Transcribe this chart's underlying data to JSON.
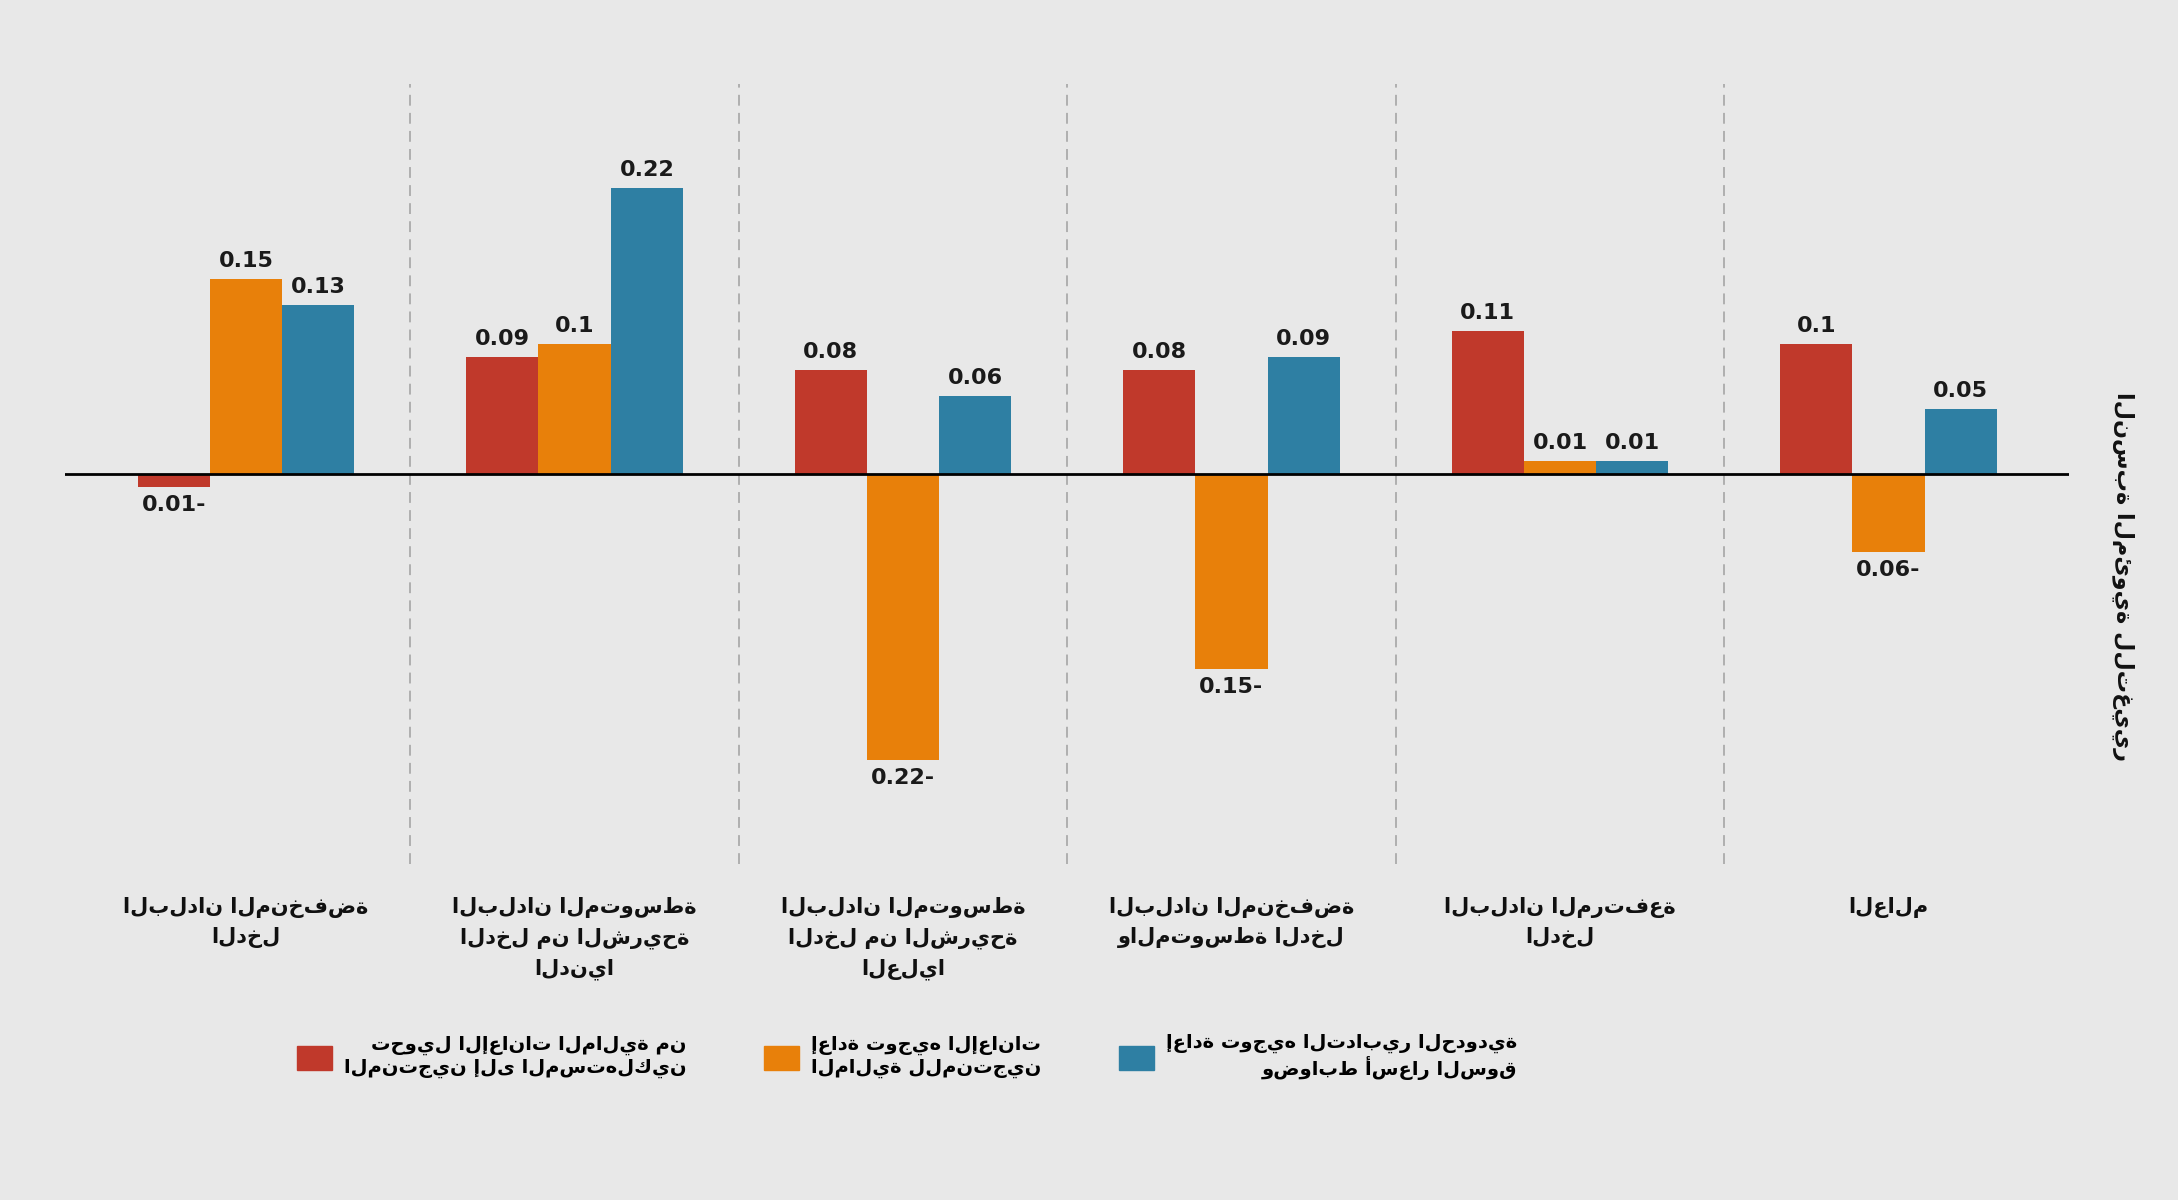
{
  "categories": [
    "البلدان المنخفضة\nالدخل",
    "البلدان المتوسطة\nالدخل من الشريحة\nالدنيا",
    "البلدان المتوسطة\nالدخل من الشريحة\nالعليا",
    "البلدان المنخفضة\nوالمتوسطة الدخل",
    "البلدان المرتفعة\nالدخل",
    "العالم"
  ],
  "series": {
    "red": [
      -0.01,
      0.09,
      0.08,
      0.08,
      0.11,
      0.1
    ],
    "orange": [
      0.15,
      0.1,
      -0.22,
      -0.15,
      0.01,
      -0.06
    ],
    "blue": [
      0.13,
      0.22,
      0.06,
      0.09,
      0.01,
      0.05
    ]
  },
  "colors": {
    "red": "#c0392b",
    "orange": "#e8800a",
    "blue": "#2e7fa3"
  },
  "legend_labels": {
    "red": "تحويل الإعانات المالية من\nالمنتجين إلى المستهلكين",
    "orange": "إعادة توجيه الإعانات\nالمالية للمنتجين",
    "blue": "إعادة توجيه التدابير الحدودية\nوضوابط أسعار السوق"
  },
  "ylabel": "النسبة المئوية للتغيير",
  "ylim": [
    -0.3,
    0.3
  ],
  "background_color": "#e8e8e8",
  "bar_width": 0.22,
  "label_fontsize": 16,
  "cat_fontsize": 15,
  "ylabel_fontsize": 16,
  "legend_fontsize": 14
}
